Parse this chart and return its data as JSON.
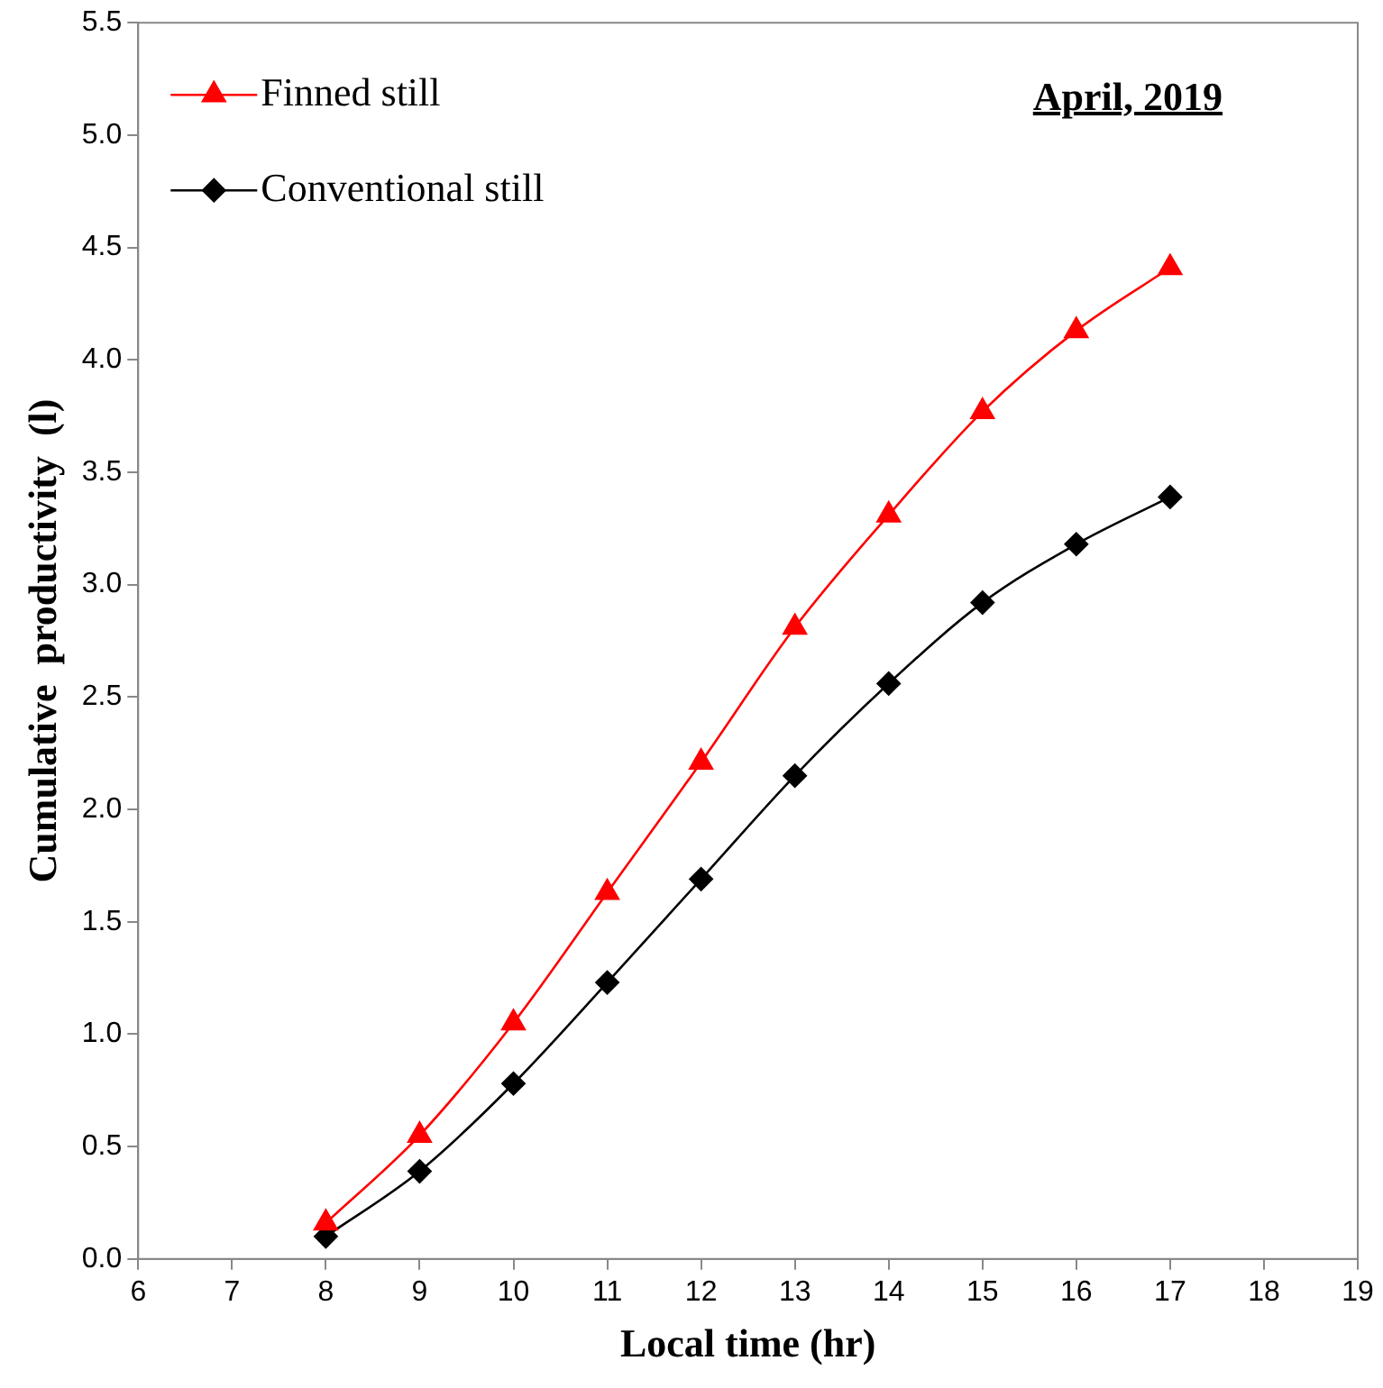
{
  "chart_data": {
    "type": "line",
    "xlabel": "Local time (hr)",
    "ylabel": "Cumulative  productivity  (l)",
    "annotations": [
      "April, 2019"
    ],
    "x": [
      8,
      9,
      10,
      11,
      12,
      13,
      14,
      15,
      16,
      17
    ],
    "series": [
      {
        "name": "Finned still",
        "color": "#ff0000",
        "marker": "triangle",
        "values": [
          0.16,
          0.55,
          1.05,
          1.63,
          2.21,
          2.81,
          3.31,
          3.77,
          4.13,
          4.41
        ]
      },
      {
        "name": "Conventional still",
        "color": "#000000",
        "marker": "diamond",
        "values": [
          0.1,
          0.39,
          0.78,
          1.23,
          1.69,
          2.15,
          2.56,
          2.92,
          3.18,
          3.39
        ]
      }
    ],
    "xlim": [
      6,
      19
    ],
    "xticks": [
      6,
      7,
      8,
      9,
      10,
      11,
      12,
      13,
      14,
      15,
      16,
      17,
      18,
      19
    ],
    "ylim": [
      0,
      5.5
    ],
    "yticks": [
      {
        "value": 0,
        "label": "0.0"
      },
      {
        "value": 0.5,
        "label": "0.5"
      },
      {
        "value": 1,
        "label": "1.0"
      },
      {
        "value": 1.5,
        "label": "1.5"
      },
      {
        "value": 2,
        "label": "2.0"
      },
      {
        "value": 2.5,
        "label": "2.5"
      },
      {
        "value": 3,
        "label": "3.0"
      },
      {
        "value": 3.5,
        "label": "3.5"
      },
      {
        "value": 4,
        "label": "4.0"
      },
      {
        "value": 4.5,
        "label": "4.5"
      },
      {
        "value": 5,
        "label": "5.0"
      },
      {
        "value": 5.5,
        "label": "5.5"
      }
    ],
    "grid": false,
    "legend": "top left",
    "line_style": "solid"
  }
}
